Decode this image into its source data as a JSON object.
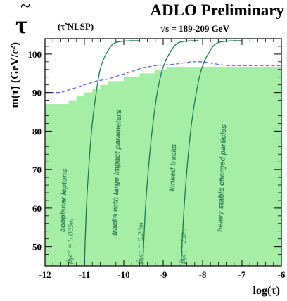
{
  "header": {
    "symbol": "τ",
    "tilde": "~",
    "nlsp": "(τ̃ NLSP)",
    "title": "ADLO Preliminary",
    "energy": "√s = 189-209 GeV"
  },
  "colors": {
    "excluded_fill": "#a6eda6",
    "contour_line": "#1f7a50",
    "expected_line": "#4a63d8",
    "label_text": "#2a7f55",
    "axis": "#000000"
  },
  "chart_data": {
    "type": "area",
    "xlabel": "log(τ)",
    "ylabel": "m(τ̃) (GeV/c²)",
    "xlim": [
      -12,
      -6
    ],
    "ylim": [
      45,
      104
    ],
    "x_ticks": [
      -12,
      -11,
      -10,
      -9,
      -8,
      -7,
      -6
    ],
    "x_tick_labels": [
      "-12",
      "-11",
      "-10",
      "-9",
      "-8",
      "-7",
      "-6"
    ],
    "y_ticks": [
      50,
      60,
      70,
      80,
      90,
      100
    ],
    "y_tick_labels": [
      "50",
      "60",
      "70",
      "80",
      "90",
      "100"
    ],
    "excluded_region": {
      "x": [
        -12,
        -11.6,
        -11.4,
        -11.2,
        -11.0,
        -10.8,
        -10.6,
        -10.4,
        -10.0,
        -9.6,
        -9.2,
        -8.9,
        -6
      ],
      "y": [
        87,
        87,
        88,
        89,
        90,
        91,
        92,
        93,
        94,
        95,
        96,
        96.7,
        96.7
      ]
    },
    "expected_limit": {
      "x": [
        -12,
        -11.6,
        -11.3,
        -11.0,
        -10.7,
        -10.4,
        -10.1,
        -9.8,
        -9.5,
        -9.2,
        -8.9,
        -8.6,
        -8.3,
        -8.0,
        -7.7,
        -7.4,
        -7.0,
        -6
      ],
      "y": [
        90,
        90,
        91,
        92,
        93,
        93.5,
        94.5,
        95.5,
        96.5,
        97,
        97.2,
        97.5,
        98,
        98,
        97.5,
        97,
        97,
        97
      ]
    },
    "contours": [
      {
        "label": "βγcτ = 0.005m",
        "x": [
          -11.0,
          -10.95,
          -10.88,
          -10.8,
          -10.7,
          -10.6,
          -10.45,
          -10.2,
          -9.6
        ],
        "y": [
          45,
          60,
          72,
          82,
          90,
          96,
          100,
          103,
          103.5
        ]
      },
      {
        "label": "βγcτ = 0.20m",
        "x": [
          -9.52,
          -9.45,
          -9.36,
          -9.26,
          -9.15,
          -9.02,
          -8.85,
          -8.6,
          -8.1
        ],
        "y": [
          45,
          60,
          72,
          82,
          90,
          96,
          100,
          103,
          103.5
        ]
      },
      {
        "label": "βγcτ =2.0m",
        "x": [
          -8.55,
          -8.47,
          -8.38,
          -8.28,
          -8.16,
          -8.03,
          -7.86,
          -7.6,
          -7.0
        ],
        "y": [
          45,
          60,
          72,
          82,
          90,
          96,
          100,
          103,
          103.5
        ]
      }
    ],
    "region_labels": [
      "acoplanar leptons",
      "tracks with large impact parameters",
      "kinked tracks",
      "heavy stable charged particles"
    ],
    "grid": false
  }
}
